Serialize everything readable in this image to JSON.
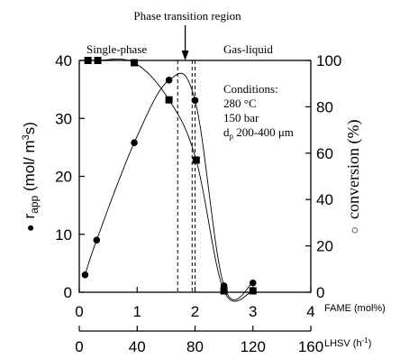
{
  "chart_data": {
    "type": "line",
    "title": "",
    "annotations": {
      "phase_transition": "Phase transition region",
      "single_phase": "Single-phase",
      "gas_liquid": "Gas-liquid",
      "conditions_title": "Conditions:",
      "conditions_temp": "280 °C",
      "conditions_pressure": "150 bar",
      "conditions_particle_prefix": "d",
      "conditions_particle_sub": "p",
      "conditions_particle_value": " 200-400 μm"
    },
    "x_axis": {
      "label": "FAME (mol%)",
      "range": [
        0,
        4
      ],
      "ticks": [
        "0",
        "1",
        "2",
        "3",
        "4"
      ]
    },
    "x2_axis": {
      "label_main": "LHSV (h",
      "label_sup": "-1",
      "label_end": ")",
      "range": [
        0,
        160
      ],
      "ticks": [
        "0",
        "40",
        "80",
        "120",
        "160"
      ]
    },
    "y_axis": {
      "label_symbol": "●",
      "label_main": "r",
      "label_sub": "app",
      "label_unit_open": " (mol/ m",
      "label_unit_sup": "3",
      "label_unit_close": "s)",
      "range": [
        0,
        40
      ],
      "ticks": [
        "0",
        "10",
        "20",
        "30",
        "40"
      ]
    },
    "y2_axis": {
      "label_symbol": "○",
      "label": "conversion (%)",
      "range": [
        0,
        100
      ],
      "ticks": [
        "0",
        "20",
        "40",
        "60",
        "80",
        "100"
      ]
    },
    "phase_lines_fame": [
      1.7,
      1.95,
      2.0
    ],
    "arrow_fame": 1.83,
    "series": [
      {
        "axis": "left",
        "marker": "circle",
        "x": [
          0.1,
          0.3,
          0.95,
          1.55,
          2.0,
          2.5,
          3.0
        ],
        "y": [
          3,
          9,
          25.8,
          36.6,
          33.1,
          1.1,
          1.6
        ]
      },
      {
        "axis": "right",
        "marker": "square",
        "x": [
          0.15,
          0.32,
          0.95,
          1.55,
          2.02,
          2.5,
          3.0
        ],
        "y": [
          100,
          100,
          99,
          83,
          57,
          0.6,
          0.6
        ]
      }
    ]
  }
}
